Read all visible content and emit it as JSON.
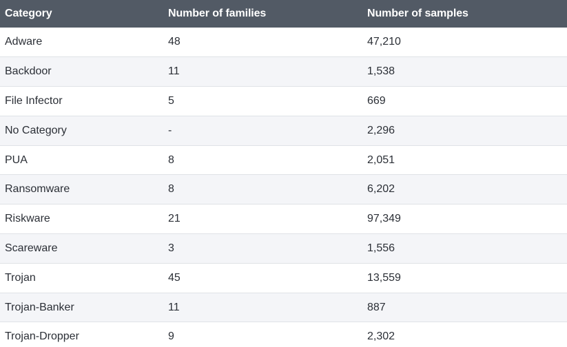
{
  "table": {
    "headers": [
      "Category",
      "Number of families",
      "Number of samples"
    ],
    "rows": [
      [
        "Adware",
        "48",
        "47,210"
      ],
      [
        "Backdoor",
        "11",
        "1,538"
      ],
      [
        "File Infector",
        "5",
        "669"
      ],
      [
        "No Category",
        "-",
        "2,296"
      ],
      [
        "PUA",
        "8",
        "2,051"
      ],
      [
        "Ransomware",
        "8",
        "6,202"
      ],
      [
        "Riskware",
        "21",
        "97,349"
      ],
      [
        "Scareware",
        "3",
        "1,556"
      ],
      [
        "Trojan",
        "45",
        "13,559"
      ],
      [
        "Trojan-Banker",
        "11",
        "887"
      ],
      [
        "Trojan-Dropper",
        "9",
        "2,302"
      ]
    ]
  }
}
